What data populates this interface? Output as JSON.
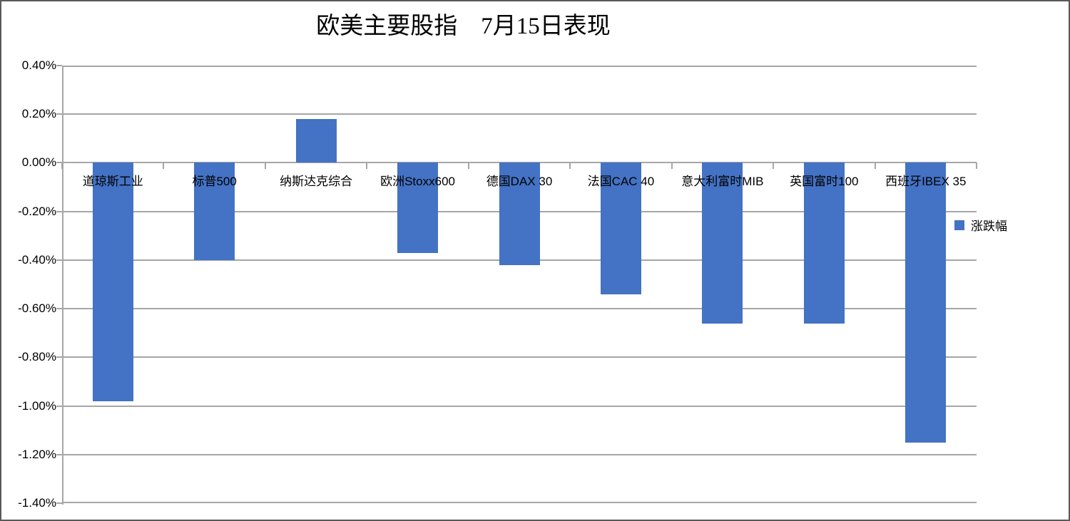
{
  "title": "欧美主要股指　7月15日表现",
  "legend": {
    "label": "涨跌幅"
  },
  "chart_data": {
    "type": "bar",
    "title": "欧美主要股指　7月15日表现",
    "categories": [
      "道琼斯工业",
      "标普500",
      "纳斯达克综合",
      "欧洲Stoxx600",
      "德国DAX 30",
      "法国CAC 40",
      "意大利富时MIB",
      "英国富时100",
      "西班牙IBEX 35"
    ],
    "series": [
      {
        "name": "涨跌幅",
        "values": [
          -0.98,
          -0.4,
          0.18,
          -0.37,
          -0.42,
          -0.54,
          -0.66,
          -0.66,
          -1.15
        ]
      }
    ],
    "value_unit": "%",
    "ylim": [
      -1.4,
      0.4
    ],
    "ytick_step": 0.2,
    "yticks": [
      0.4,
      0.2,
      0.0,
      -0.2,
      -0.4,
      -0.6,
      -0.8,
      -1.0,
      -1.2,
      -1.4
    ],
    "ytick_labels": [
      "0.40%",
      "0.20%",
      "0.00%",
      "-0.20%",
      "-0.40%",
      "-0.60%",
      "-0.80%",
      "-1.00%",
      "-1.20%",
      "-1.40%"
    ],
    "grid": true,
    "legend_position": "right-middle",
    "colors": {
      "bar": "#4472C4",
      "gridline": "#A6A6A6",
      "text": "#000000",
      "chart_border": "#595959"
    }
  }
}
